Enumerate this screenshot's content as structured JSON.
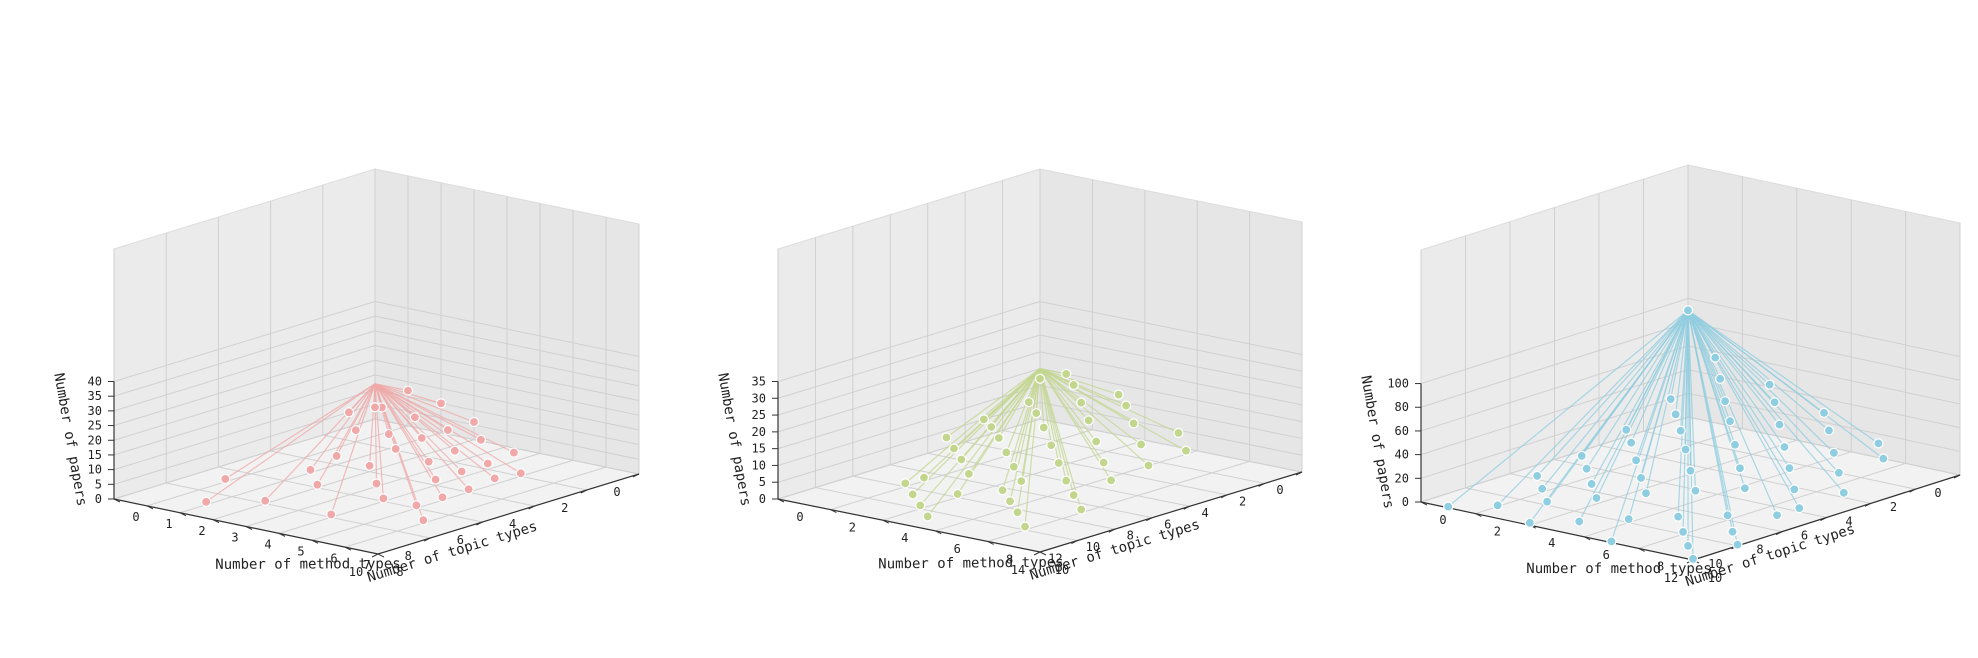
{
  "chart_data": [
    {
      "type": "scatter3d",
      "color": "#f0a8a8",
      "xlabel": "Number of topic types",
      "ylabel": "Number of method types",
      "zlabel": "Number of papers",
      "xlim": [
        0,
        10
      ],
      "ylim": [
        0,
        8
      ],
      "zlim": [
        0,
        40
      ],
      "xticks": [
        0,
        2,
        4,
        6,
        8,
        10
      ],
      "yticks": [
        0,
        1,
        2,
        3,
        4,
        5,
        6,
        7,
        8
      ],
      "zticks": [
        0,
        5,
        10,
        15,
        20,
        25,
        30,
        35,
        40
      ],
      "grid": true,
      "points": [
        [
          7,
          1,
          1
        ],
        [
          8,
          3,
          1
        ],
        [
          9,
          2,
          1
        ],
        [
          8,
          5,
          1
        ],
        [
          6,
          6,
          1
        ],
        [
          7,
          7,
          1
        ],
        [
          5,
          2,
          1
        ],
        [
          6,
          3,
          1
        ],
        [
          5,
          4,
          1
        ],
        [
          6,
          5,
          1
        ],
        [
          4,
          5,
          2
        ],
        [
          5,
          6,
          1
        ],
        [
          4,
          2,
          3
        ],
        [
          4,
          3,
          2
        ],
        [
          3,
          3,
          5
        ],
        [
          3,
          4,
          3
        ],
        [
          3,
          5,
          2
        ],
        [
          4,
          6,
          1
        ],
        [
          2,
          1,
          4
        ],
        [
          2,
          2,
          5
        ],
        [
          2,
          3,
          6
        ],
        [
          2,
          4,
          4
        ],
        [
          1,
          1,
          9
        ],
        [
          1,
          2,
          8
        ],
        [
          1,
          3,
          6
        ],
        [
          1,
          4,
          5
        ],
        [
          0,
          1,
          12
        ],
        [
          0,
          2,
          10
        ],
        [
          1,
          5,
          3
        ],
        [
          3,
          6,
          2
        ],
        [
          0,
          0,
          4
        ],
        [
          0,
          3,
          6
        ],
        [
          1,
          0,
          5
        ],
        [
          2,
          5,
          2
        ],
        [
          2,
          6,
          1
        ]
      ]
    },
    {
      "type": "scatter3d",
      "color": "#c2d68e",
      "xlabel": "Number of topic types",
      "ylabel": "Number of method types",
      "zlabel": "Number of papers",
      "xlim": [
        0,
        14
      ],
      "ylim": [
        0,
        10
      ],
      "zlim": [
        0,
        35
      ],
      "xticks": [
        0,
        2,
        4,
        6,
        8,
        10,
        12,
        14
      ],
      "yticks": [
        0,
        2,
        4,
        6,
        8,
        10
      ],
      "zticks": [
        0,
        5,
        10,
        15,
        20,
        25,
        30,
        35
      ],
      "grid": true,
      "points": [
        [
          13,
          5,
          1
        ],
        [
          12,
          8,
          1
        ],
        [
          11,
          7,
          2
        ],
        [
          11,
          3,
          1
        ],
        [
          10,
          4,
          1
        ],
        [
          10,
          6,
          2
        ],
        [
          9,
          2,
          1
        ],
        [
          9,
          5,
          2
        ],
        [
          9,
          8,
          1
        ],
        [
          8,
          3,
          2
        ],
        [
          8,
          5,
          3
        ],
        [
          8,
          7,
          2
        ],
        [
          7,
          2,
          3
        ],
        [
          7,
          4,
          4
        ],
        [
          7,
          6,
          3
        ],
        [
          6,
          1,
          3
        ],
        [
          6,
          3,
          5
        ],
        [
          6,
          5,
          5
        ],
        [
          6,
          7,
          3
        ],
        [
          5,
          2,
          6
        ],
        [
          5,
          4,
          7
        ],
        [
          5,
          6,
          5
        ],
        [
          4,
          1,
          6
        ],
        [
          4,
          3,
          9
        ],
        [
          4,
          5,
          8
        ],
        [
          4,
          7,
          4
        ],
        [
          3,
          2,
          10
        ],
        [
          3,
          4,
          11
        ],
        [
          3,
          6,
          7
        ],
        [
          2,
          1,
          10
        ],
        [
          2,
          3,
          13
        ],
        [
          2,
          5,
          10
        ],
        [
          1,
          2,
          15
        ],
        [
          1,
          4,
          12
        ],
        [
          0,
          1,
          15
        ],
        [
          0,
          3,
          12
        ],
        [
          1,
          6,
          7
        ],
        [
          3,
          0,
          5
        ],
        [
          5,
          0,
          3
        ],
        [
          0,
          0,
          12
        ],
        [
          2,
          7,
          5
        ],
        [
          10,
          2,
          1
        ],
        [
          12,
          4,
          1
        ]
      ]
    },
    {
      "type": "scatter3d",
      "color": "#8fcde0",
      "xlabel": "Number of topic types",
      "ylabel": "Number of method types",
      "zlabel": "Number of papers",
      "xlim": [
        0,
        12
      ],
      "ylim": [
        0,
        10
      ],
      "zlim": [
        0,
        100
      ],
      "xticks": [
        0,
        2,
        4,
        6,
        8,
        10,
        12
      ],
      "yticks": [
        0,
        2,
        4,
        6,
        8,
        10
      ],
      "zticks": [
        0,
        20,
        40,
        60,
        80,
        100
      ],
      "grid": true,
      "points": [
        [
          12,
          7,
          1
        ],
        [
          11,
          9,
          1
        ],
        [
          12,
          4,
          2
        ],
        [
          11,
          5,
          2
        ],
        [
          10,
          3,
          3
        ],
        [
          10,
          6,
          3
        ],
        [
          10,
          8,
          2
        ],
        [
          9,
          2,
          3
        ],
        [
          9,
          4,
          5
        ],
        [
          9,
          7,
          4
        ],
        [
          9,
          9,
          1
        ],
        [
          8,
          1,
          3
        ],
        [
          8,
          3,
          6
        ],
        [
          8,
          5,
          8
        ],
        [
          8,
          8,
          4
        ],
        [
          7,
          2,
          8
        ],
        [
          7,
          4,
          10
        ],
        [
          7,
          6,
          9
        ],
        [
          7,
          9,
          3
        ],
        [
          6,
          1,
          8
        ],
        [
          6,
          3,
          14
        ],
        [
          6,
          5,
          15
        ],
        [
          6,
          7,
          10
        ],
        [
          5,
          2,
          18
        ],
        [
          5,
          4,
          22
        ],
        [
          5,
          6,
          16
        ],
        [
          5,
          8,
          8
        ],
        [
          4,
          1,
          18
        ],
        [
          4,
          3,
          27
        ],
        [
          4,
          5,
          25
        ],
        [
          4,
          7,
          15
        ],
        [
          3,
          2,
          30
        ],
        [
          3,
          4,
          34
        ],
        [
          3,
          6,
          22
        ],
        [
          3,
          8,
          10
        ],
        [
          2,
          1,
          32
        ],
        [
          2,
          3,
          40
        ],
        [
          2,
          5,
          30
        ],
        [
          2,
          7,
          16
        ],
        [
          1,
          2,
          48
        ],
        [
          1,
          4,
          38
        ],
        [
          1,
          6,
          24
        ],
        [
          0,
          1,
          55
        ],
        [
          0,
          3,
          42
        ],
        [
          0,
          5,
          28
        ],
        [
          1,
          8,
          10
        ],
        [
          0,
          7,
          12
        ],
        [
          12,
          1,
          1
        ],
        [
          11,
          2,
          1
        ],
        [
          12,
          10,
          1
        ],
        [
          10,
          10,
          1
        ],
        [
          0,
          0,
          90
        ],
        [
          6,
          9,
          3
        ],
        [
          4,
          9,
          4
        ]
      ]
    }
  ]
}
